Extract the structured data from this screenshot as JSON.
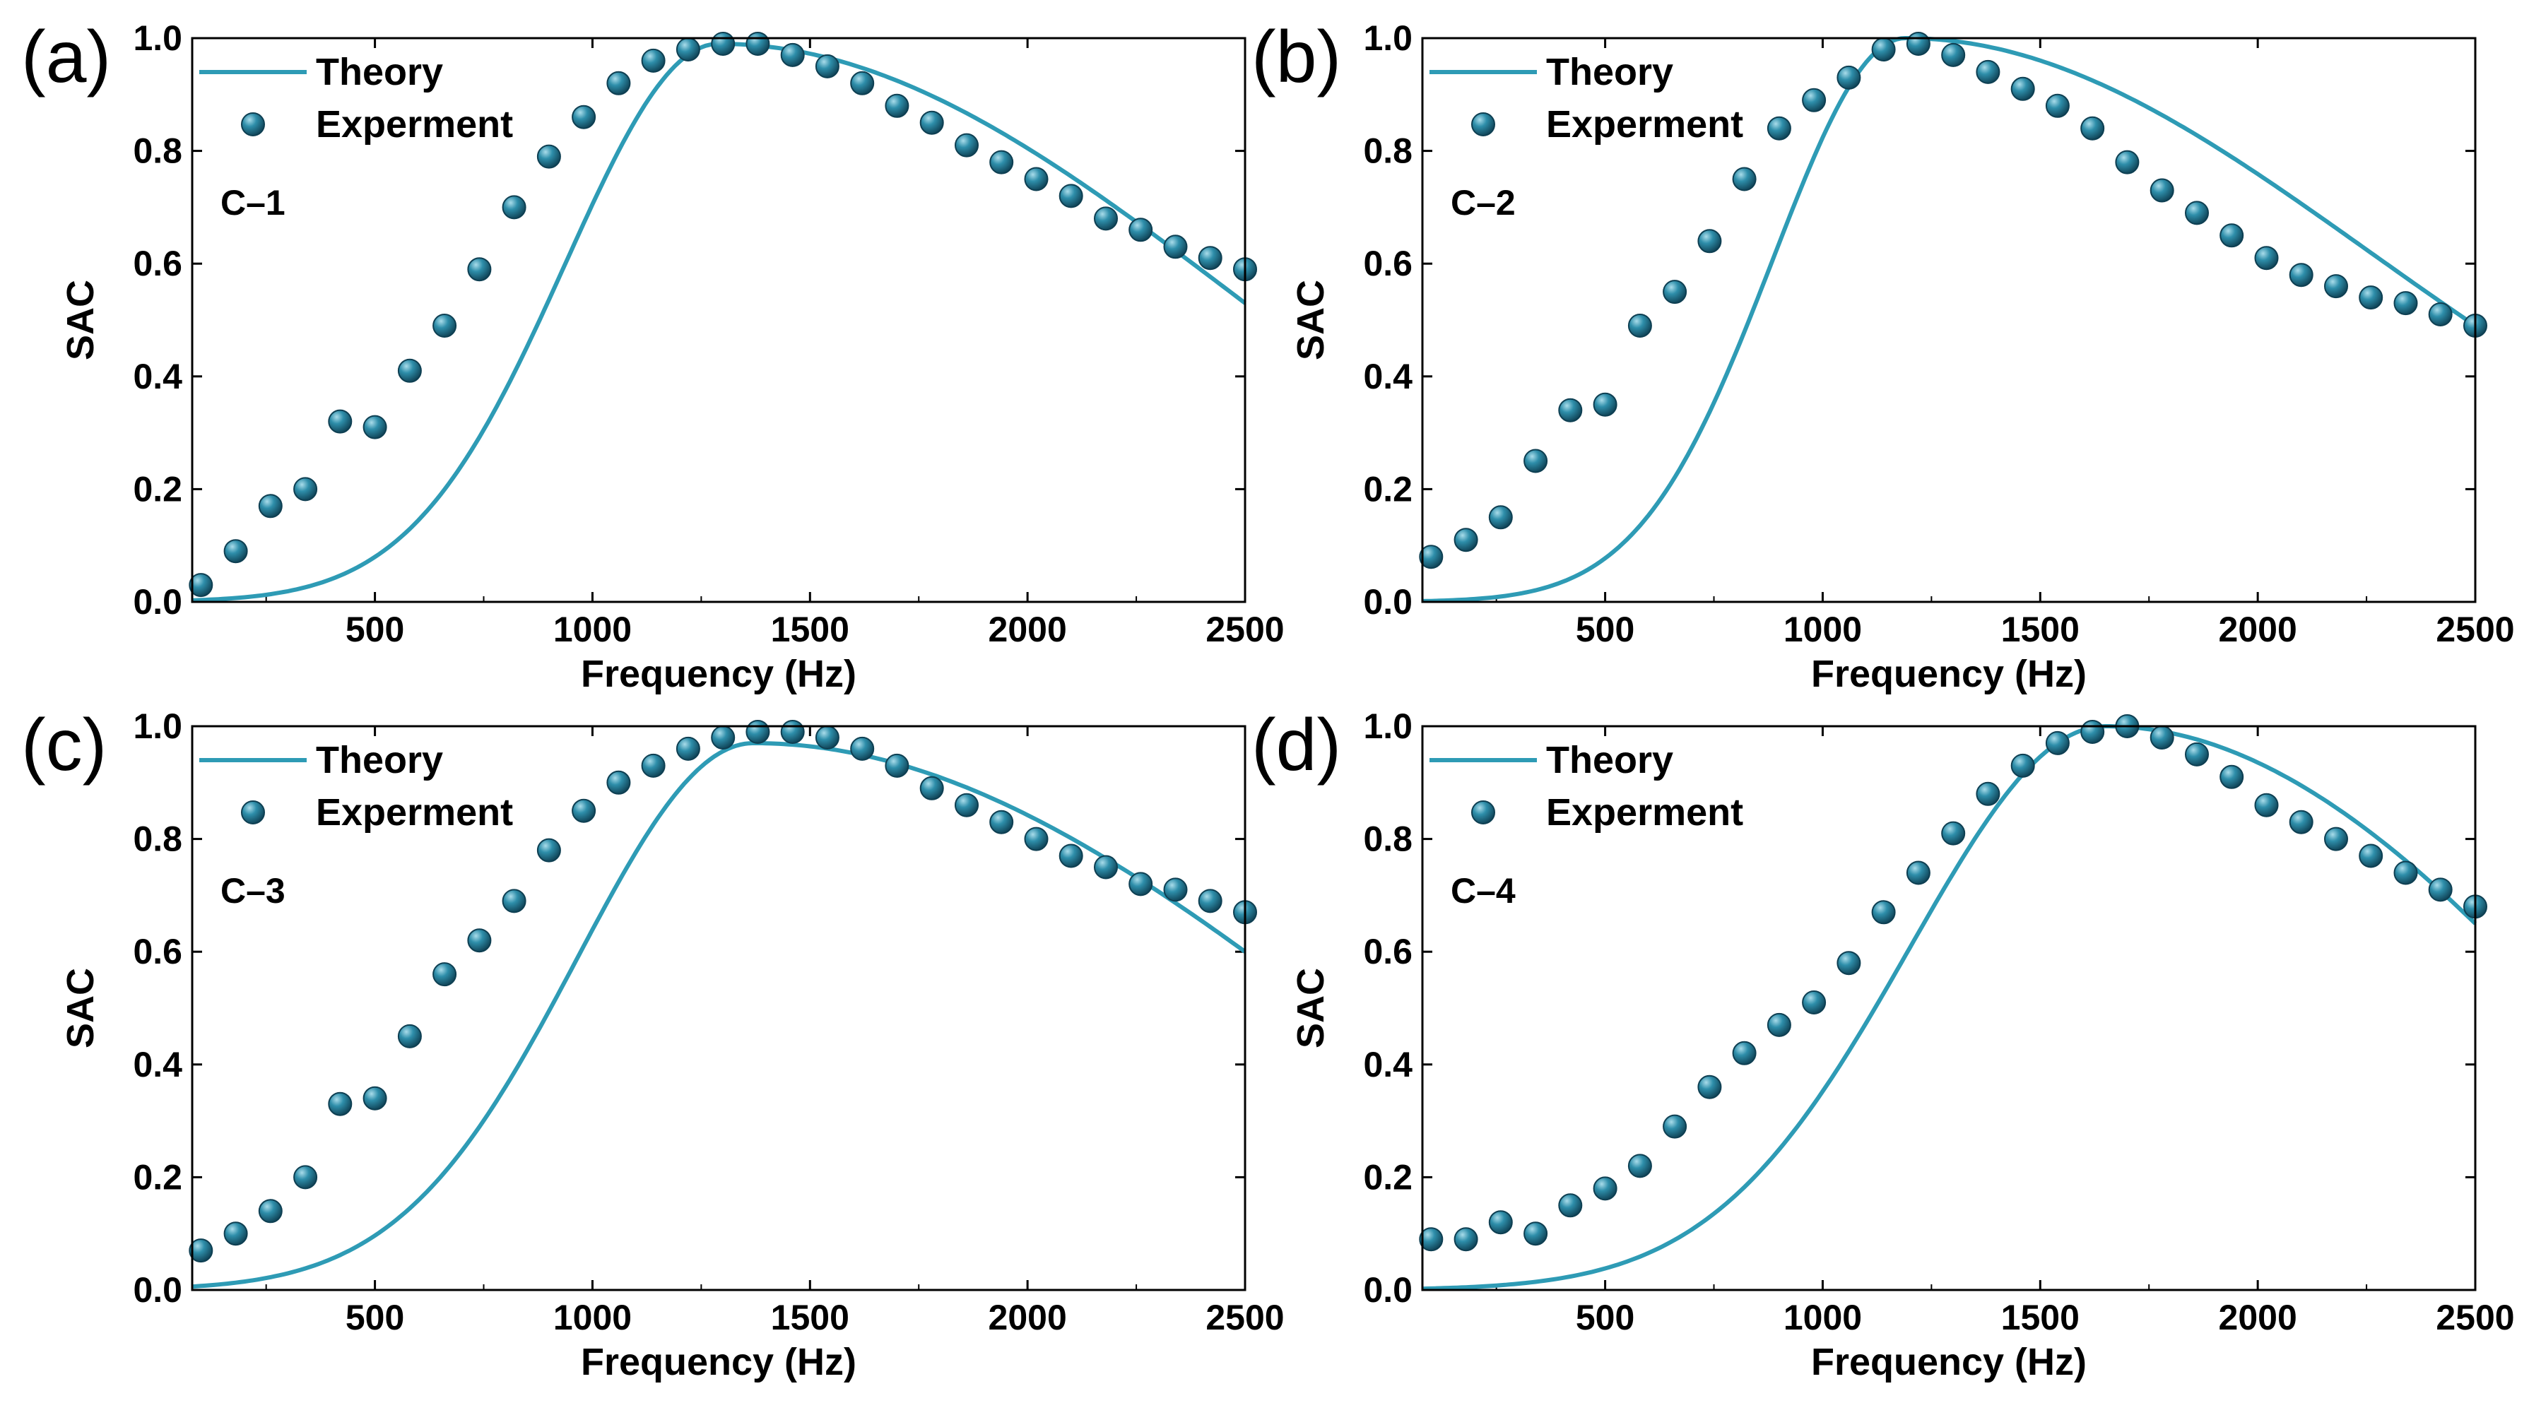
{
  "colors": {
    "theory_line": "#2E9BB5",
    "marker_fill": "#1F6E88",
    "marker_edge": "#0E3F52",
    "marker_highlight": "#A9DCEA",
    "axis": "#000000"
  },
  "chart_data": [
    {
      "panel": "(a)",
      "sample": "C–1",
      "type": "line+scatter",
      "xlabel": "Frequency (Hz)",
      "ylabel": "SAC",
      "xlim": [
        80,
        2500
      ],
      "ylim": [
        0,
        1.0
      ],
      "xticks": [
        500,
        1000,
        1500,
        2000,
        2500
      ],
      "yticks": [
        0.0,
        0.2,
        0.4,
        0.6,
        0.8,
        1.0
      ],
      "legend": {
        "position": "top-left",
        "entries": [
          "Theory",
          "Experment"
        ]
      },
      "series": [
        {
          "name": "Theory",
          "kind": "line",
          "peak_x": 1290,
          "peak_y": 0.99,
          "sigma_left": 352,
          "sigma_right": 1150,
          "y_at_2500": 0.53
        },
        {
          "name": "Experment",
          "kind": "scatter",
          "x": [
            100,
            180,
            260,
            340,
            420,
            500,
            580,
            660,
            740,
            820,
            900,
            980,
            1060,
            1140,
            1220,
            1300,
            1380,
            1460,
            1540,
            1620,
            1700,
            1780,
            1860,
            1940,
            2020,
            2100,
            2180,
            2260,
            2340,
            2420,
            2500
          ],
          "y": [
            0.03,
            0.09,
            0.17,
            0.2,
            0.32,
            0.31,
            0.41,
            0.49,
            0.59,
            0.7,
            0.79,
            0.86,
            0.92,
            0.96,
            0.98,
            0.99,
            0.99,
            0.97,
            0.95,
            0.92,
            0.88,
            0.85,
            0.81,
            0.78,
            0.75,
            0.72,
            0.68,
            0.66,
            0.63,
            0.61,
            0.59
          ]
        }
      ]
    },
    {
      "panel": "(b)",
      "sample": "C–2",
      "type": "line+scatter",
      "xlabel": "Frequency (Hz)",
      "ylabel": "SAC",
      "xlim": [
        80,
        2500
      ],
      "ylim": [
        0,
        1.0
      ],
      "xticks": [
        500,
        1000,
        1500,
        2000,
        2500
      ],
      "yticks": [
        0.0,
        0.2,
        0.4,
        0.6,
        0.8,
        1.0
      ],
      "legend": {
        "position": "top-left",
        "entries": [
          "Theory",
          "Experment"
        ]
      },
      "series": [
        {
          "name": "Theory",
          "kind": "line",
          "peak_x": 1190,
          "peak_y": 1.0,
          "sigma_left": 305,
          "sigma_right": 1080,
          "y_at_2500": 0.49
        },
        {
          "name": "Experment",
          "kind": "scatter",
          "x": [
            100,
            180,
            260,
            340,
            420,
            500,
            580,
            660,
            740,
            820,
            900,
            980,
            1060,
            1140,
            1220,
            1300,
            1380,
            1460,
            1540,
            1620,
            1700,
            1780,
            1860,
            1940,
            2020,
            2100,
            2180,
            2260,
            2340,
            2420,
            2500
          ],
          "y": [
            0.08,
            0.11,
            0.15,
            0.25,
            0.34,
            0.35,
            0.49,
            0.55,
            0.64,
            0.75,
            0.84,
            0.89,
            0.93,
            0.98,
            0.99,
            0.97,
            0.94,
            0.91,
            0.88,
            0.84,
            0.78,
            0.73,
            0.69,
            0.65,
            0.61,
            0.58,
            0.56,
            0.54,
            0.53,
            0.51,
            0.49
          ]
        }
      ]
    },
    {
      "panel": "(c)",
      "sample": "C–3",
      "type": "line+scatter",
      "xlabel": "Frequency (Hz)",
      "ylabel": "SAC",
      "xlim": [
        80,
        2500
      ],
      "ylim": [
        0,
        1.0
      ],
      "xticks": [
        500,
        1000,
        1500,
        2000,
        2500
      ],
      "yticks": [
        0.0,
        0.2,
        0.4,
        0.6,
        0.8,
        1.0
      ],
      "legend": {
        "position": "top-left",
        "entries": [
          "Theory",
          "Experment"
        ]
      },
      "series": [
        {
          "name": "Theory",
          "kind": "line",
          "peak_x": 1370,
          "peak_y": 0.97,
          "sigma_left": 405,
          "sigma_right": 1300,
          "y_at_2500": 0.6
        },
        {
          "name": "Experment",
          "kind": "scatter",
          "x": [
            100,
            180,
            260,
            340,
            420,
            500,
            580,
            660,
            740,
            820,
            900,
            980,
            1060,
            1140,
            1220,
            1300,
            1380,
            1460,
            1540,
            1620,
            1700,
            1780,
            1860,
            1940,
            2020,
            2100,
            2180,
            2260,
            2340,
            2420,
            2500
          ],
          "y": [
            0.07,
            0.1,
            0.14,
            0.2,
            0.33,
            0.34,
            0.45,
            0.56,
            0.62,
            0.69,
            0.78,
            0.85,
            0.9,
            0.93,
            0.96,
            0.98,
            0.99,
            0.99,
            0.98,
            0.96,
            0.93,
            0.89,
            0.86,
            0.83,
            0.8,
            0.77,
            0.75,
            0.72,
            0.71,
            0.69,
            0.67
          ]
        }
      ]
    },
    {
      "panel": "(d)",
      "sample": "C–4",
      "type": "line+scatter",
      "xlabel": "Frequency (Hz)",
      "ylabel": "SAC",
      "xlim": [
        80,
        2500
      ],
      "ylim": [
        0,
        1.0
      ],
      "xticks": [
        500,
        1000,
        1500,
        2000,
        2500
      ],
      "yticks": [
        0.0,
        0.2,
        0.4,
        0.6,
        0.8,
        1.0
      ],
      "legend": {
        "position": "top-left",
        "entries": [
          "Theory",
          "Experment"
        ]
      },
      "series": [
        {
          "name": "Theory",
          "kind": "line",
          "peak_x": 1650,
          "peak_y": 1.0,
          "sigma_left": 450,
          "sigma_right": 1130,
          "y_at_2500": 0.65
        },
        {
          "name": "Experment",
          "kind": "scatter",
          "x": [
            100,
            180,
            260,
            340,
            420,
            500,
            580,
            660,
            740,
            820,
            900,
            980,
            1060,
            1140,
            1220,
            1300,
            1380,
            1460,
            1540,
            1620,
            1700,
            1780,
            1860,
            1940,
            2020,
            2100,
            2180,
            2260,
            2340,
            2420,
            2500
          ],
          "y": [
            0.09,
            0.09,
            0.12,
            0.1,
            0.15,
            0.18,
            0.22,
            0.29,
            0.36,
            0.42,
            0.47,
            0.51,
            0.58,
            0.67,
            0.74,
            0.81,
            0.88,
            0.93,
            0.97,
            0.99,
            1.0,
            0.98,
            0.95,
            0.91,
            0.86,
            0.83,
            0.8,
            0.77,
            0.74,
            0.71,
            0.68
          ]
        }
      ]
    }
  ]
}
